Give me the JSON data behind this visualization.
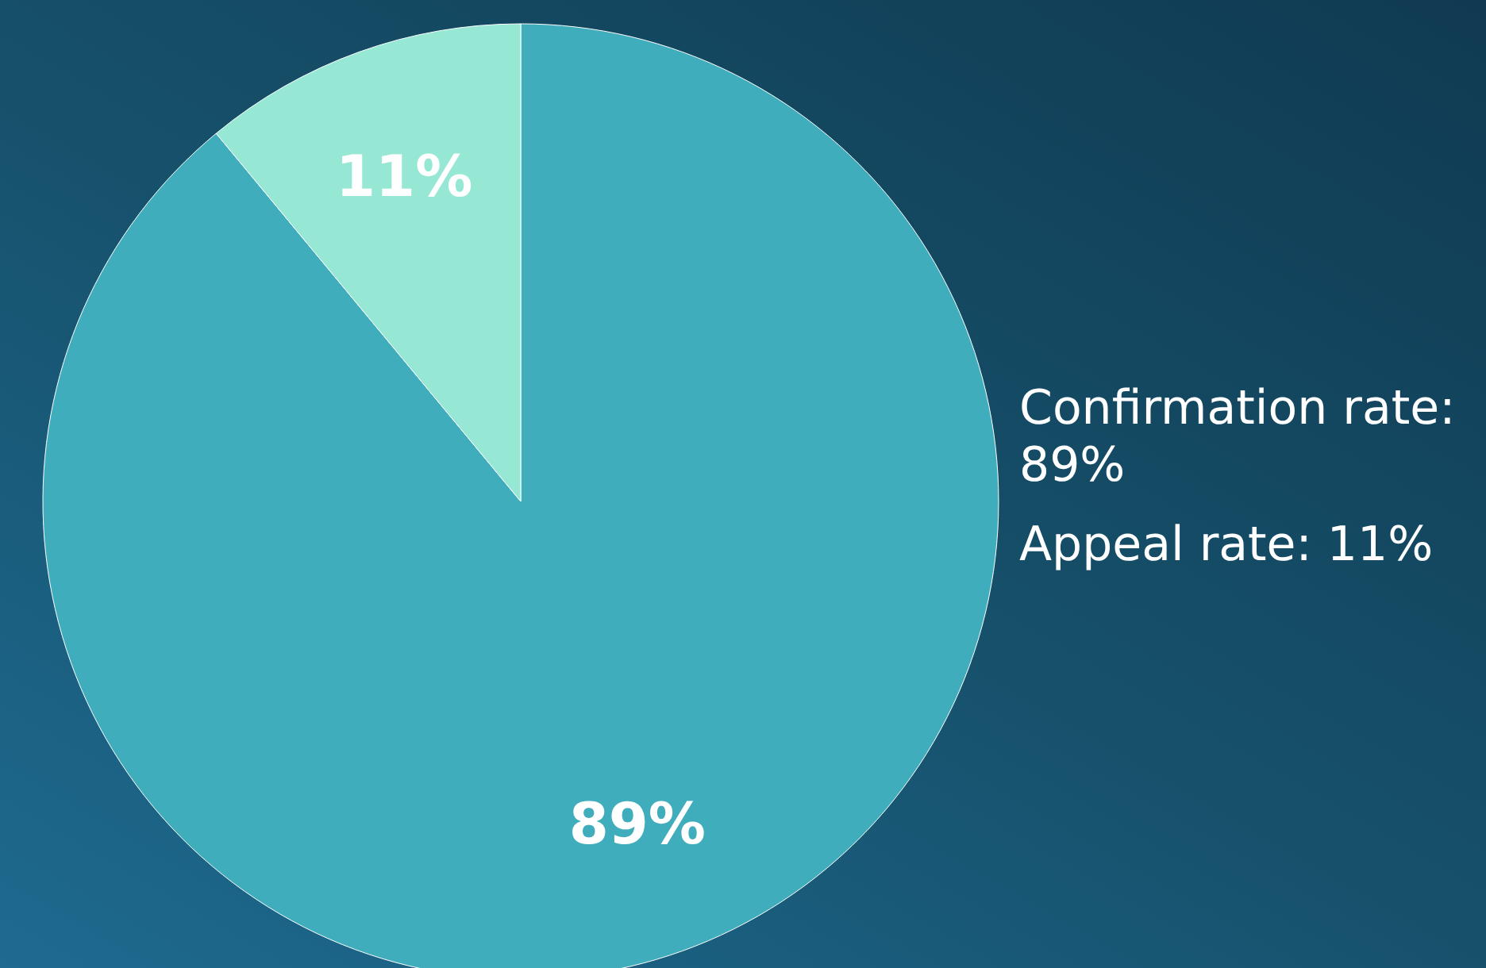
{
  "chart_data": {
    "type": "pie",
    "categories": [
      null,
      null
    ],
    "values": [
      89,
      11
    ],
    "colors": [
      "#40adbd",
      "#96e8d5"
    ],
    "value_labels": [
      "89%",
      "11%"
    ],
    "annotations": [
      "Confirmation rate: 89%",
      "Appeal rate: 11%"
    ]
  }
}
